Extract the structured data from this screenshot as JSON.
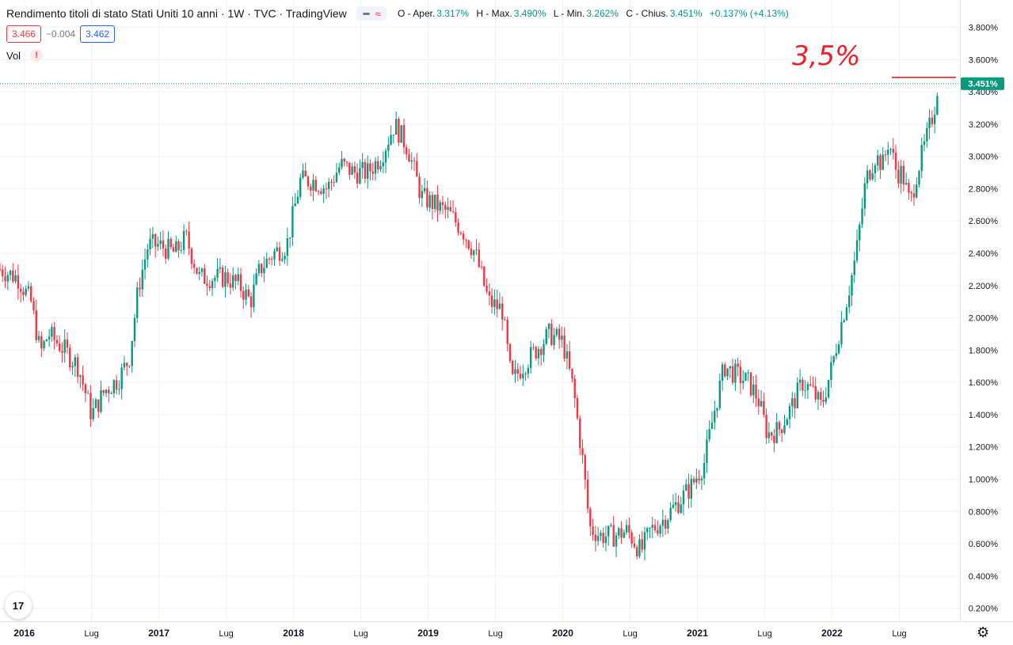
{
  "header": {
    "title": "Rendimento titoli di stato Stati Uniti 10 anni · 1W · TVC · TradingView",
    "ohlc": {
      "open_label": "O - Aper.",
      "open": "3.317%",
      "high_label": "H - Max.",
      "high": "3.490%",
      "low_label": "L - Min.",
      "low": "3.262%",
      "close_label": "C - Chius.",
      "close": "3.451%",
      "change": "+0.137% (+4.13%)"
    },
    "sell_price": "3.466",
    "spread": "−0.004",
    "buy_price": "3.462",
    "volume_label": "Vol",
    "volume_warning": "!",
    "logo_text": "17"
  },
  "icons": {
    "settings": "gear-icon",
    "warning": "warning-icon",
    "logo": "tradingview-logo-icon",
    "toggle": "wave-icon"
  },
  "colors": {
    "up": "#089981",
    "down": "#f23645",
    "grid": "#f0f3fa",
    "annotation": "#e8212b"
  },
  "annotation": {
    "text": "3,5%",
    "line_value": 3.49
  },
  "chart_data": {
    "type": "candlestick",
    "title": "Rendimento titoli di stato Stati Uniti 10 anni",
    "interval": "1W",
    "y_ticks": [
      "3.800%",
      "3.600%",
      "3.400%",
      "3.200%",
      "3.000%",
      "2.800%",
      "2.600%",
      "2.400%",
      "2.200%",
      "2.000%",
      "1.800%",
      "1.600%",
      "1.400%",
      "1.200%",
      "1.000%",
      "0.800%",
      "0.600%",
      "0.400%",
      "0.200%"
    ],
    "y_tick_values": [
      3.8,
      3.6,
      3.4,
      3.2,
      3.0,
      2.8,
      2.6,
      2.4,
      2.2,
      2.0,
      1.8,
      1.6,
      1.4,
      1.2,
      1.0,
      0.8,
      0.6,
      0.4,
      0.2
    ],
    "ylim": [
      0.1,
      3.9
    ],
    "x_ticks": [
      {
        "label": "2016",
        "t": 2016.0
      },
      {
        "label": "Lug",
        "t": 2016.5
      },
      {
        "label": "2017",
        "t": 2017.0
      },
      {
        "label": "Lug",
        "t": 2017.5
      },
      {
        "label": "2018",
        "t": 2018.0
      },
      {
        "label": "Lug",
        "t": 2018.5
      },
      {
        "label": "2019",
        "t": 2019.0
      },
      {
        "label": "Lug",
        "t": 2019.5
      },
      {
        "label": "2020",
        "t": 2020.0
      },
      {
        "label": "Lug",
        "t": 2020.5
      },
      {
        "label": "2021",
        "t": 2021.0
      },
      {
        "label": "Lug",
        "t": 2021.5
      },
      {
        "label": "2022",
        "t": 2022.0
      },
      {
        "label": "Lug",
        "t": 2022.5
      }
    ],
    "xlim": [
      2015.82,
      2022.95
    ],
    "last_price_label": "3.451%",
    "last_price": 3.451,
    "path": [
      [
        2015.82,
        2.3
      ],
      [
        2015.95,
        2.25
      ],
      [
        2016.05,
        2.1
      ],
      [
        2016.12,
        1.78
      ],
      [
        2016.18,
        1.9
      ],
      [
        2016.3,
        1.8
      ],
      [
        2016.4,
        1.7
      ],
      [
        2016.5,
        1.4
      ],
      [
        2016.6,
        1.55
      ],
      [
        2016.7,
        1.62
      ],
      [
        2016.78,
        1.75
      ],
      [
        2016.85,
        2.2
      ],
      [
        2016.92,
        2.45
      ],
      [
        2017.0,
        2.45
      ],
      [
        2017.12,
        2.4
      ],
      [
        2017.2,
        2.5
      ],
      [
        2017.3,
        2.25
      ],
      [
        2017.4,
        2.25
      ],
      [
        2017.5,
        2.25
      ],
      [
        2017.6,
        2.2
      ],
      [
        2017.68,
        2.1
      ],
      [
        2017.75,
        2.3
      ],
      [
        2017.85,
        2.4
      ],
      [
        2017.95,
        2.45
      ],
      [
        2018.05,
        2.85
      ],
      [
        2018.15,
        2.85
      ],
      [
        2018.25,
        2.8
      ],
      [
        2018.35,
        2.95
      ],
      [
        2018.45,
        2.9
      ],
      [
        2018.55,
        2.9
      ],
      [
        2018.65,
        3.0
      ],
      [
        2018.75,
        3.2
      ],
      [
        2018.85,
        3.05
      ],
      [
        2018.95,
        2.75
      ],
      [
        2019.05,
        2.7
      ],
      [
        2019.15,
        2.65
      ],
      [
        2019.25,
        2.55
      ],
      [
        2019.35,
        2.4
      ],
      [
        2019.45,
        2.1
      ],
      [
        2019.55,
        2.05
      ],
      [
        2019.62,
        1.6
      ],
      [
        2019.7,
        1.7
      ],
      [
        2019.8,
        1.8
      ],
      [
        2019.9,
        1.9
      ],
      [
        2020.0,
        1.85
      ],
      [
        2020.08,
        1.55
      ],
      [
        2020.15,
        1.1
      ],
      [
        2020.2,
        0.7
      ],
      [
        2020.28,
        0.65
      ],
      [
        2020.38,
        0.65
      ],
      [
        2020.48,
        0.68
      ],
      [
        2020.58,
        0.55
      ],
      [
        2020.65,
        0.68
      ],
      [
        2020.75,
        0.75
      ],
      [
        2020.85,
        0.85
      ],
      [
        2020.95,
        0.95
      ],
      [
        2021.05,
        1.1
      ],
      [
        2021.12,
        1.4
      ],
      [
        2021.2,
        1.7
      ],
      [
        2021.28,
        1.65
      ],
      [
        2021.38,
        1.6
      ],
      [
        2021.45,
        1.5
      ],
      [
        2021.52,
        1.28
      ],
      [
        2021.6,
        1.3
      ],
      [
        2021.7,
        1.45
      ],
      [
        2021.78,
        1.6
      ],
      [
        2021.85,
        1.55
      ],
      [
        2021.92,
        1.45
      ],
      [
        2022.0,
        1.7
      ],
      [
        2022.05,
        1.9
      ],
      [
        2022.12,
        2.15
      ],
      [
        2022.18,
        2.4
      ],
      [
        2022.25,
        2.85
      ],
      [
        2022.32,
        3.0
      ],
      [
        2022.38,
        2.95
      ],
      [
        2022.42,
        3.1
      ],
      [
        2022.48,
        2.9
      ],
      [
        2022.52,
        2.9
      ],
      [
        2022.55,
        2.8
      ],
      [
        2022.58,
        2.7
      ],
      [
        2022.63,
        2.9
      ],
      [
        2022.7,
        3.1
      ],
      [
        2022.76,
        3.3
      ],
      [
        2022.785,
        3.45
      ]
    ]
  }
}
